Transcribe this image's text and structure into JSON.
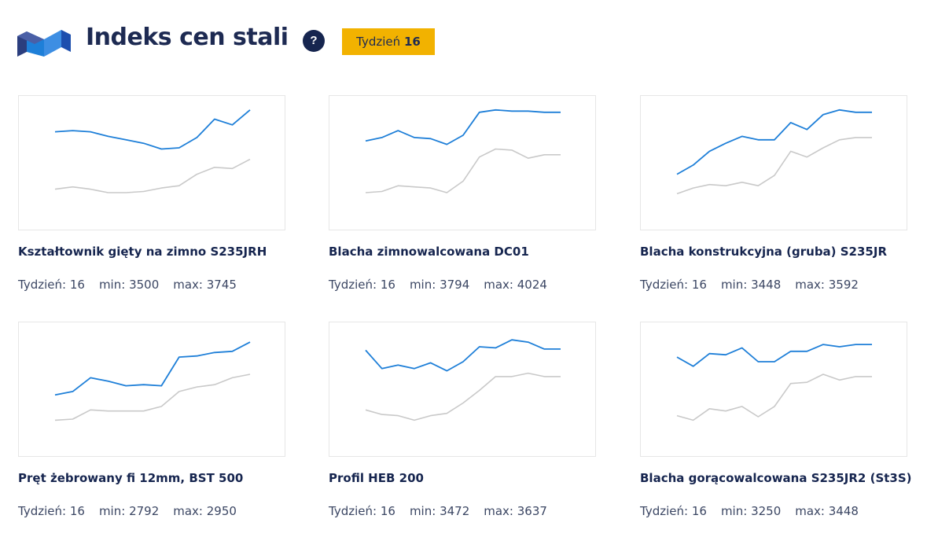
{
  "header": {
    "title": "Indeks cen stali",
    "help_symbol": "?",
    "week_label": "Tydzień",
    "week_number": "16"
  },
  "colors": {
    "primary_line": "#1e7fd8",
    "secondary_line": "#c9c9c9",
    "badge": "#f2b200",
    "navy": "#1d2a52"
  },
  "labels": {
    "week": "Tydzień:",
    "min": "min:",
    "max": "max:"
  },
  "chart_data": [
    {
      "type": "line",
      "title": "Kształtownik gięty na zimno S235JRH",
      "week": "16",
      "min": "3500",
      "max": "3745",
      "ylim": [
        0,
        1
      ],
      "x": [
        1,
        2,
        3,
        4,
        5,
        6,
        7,
        8,
        9,
        10,
        11,
        12
      ],
      "series": [
        {
          "values": [
            0.77,
            0.78,
            0.77,
            0.73,
            0.7,
            0.67,
            0.62,
            0.63,
            0.72,
            0.88,
            0.83,
            0.96
          ]
        },
        {
          "values": [
            0.27,
            0.29,
            0.27,
            0.24,
            0.24,
            0.25,
            0.28,
            0.3,
            0.4,
            0.46,
            0.45,
            0.53
          ]
        }
      ]
    },
    {
      "type": "line",
      "title": "Blacha zimnowalcowana DC01",
      "week": "16",
      "min": "3794",
      "max": "4024",
      "ylim": [
        0,
        1
      ],
      "x": [
        1,
        2,
        3,
        4,
        5,
        6,
        7,
        8,
        9,
        10,
        11,
        12,
        13
      ],
      "series": [
        {
          "values": [
            0.69,
            0.72,
            0.78,
            0.72,
            0.71,
            0.66,
            0.74,
            0.94,
            0.96,
            0.95,
            0.95,
            0.94,
            0.94
          ]
        },
        {
          "values": [
            0.24,
            0.25,
            0.3,
            0.29,
            0.28,
            0.24,
            0.34,
            0.55,
            0.62,
            0.61,
            0.54,
            0.57,
            0.57
          ]
        }
      ]
    },
    {
      "type": "line",
      "title": "Blacha konstrukcyjna (gruba) S235JR",
      "week": "16",
      "min": "3448",
      "max": "3592",
      "ylim": [
        0,
        1
      ],
      "x": [
        1,
        2,
        3,
        4,
        5,
        6,
        7,
        8,
        9,
        10,
        11,
        12,
        13
      ],
      "series": [
        {
          "values": [
            0.4,
            0.48,
            0.6,
            0.67,
            0.73,
            0.7,
            0.7,
            0.85,
            0.79,
            0.92,
            0.96,
            0.94,
            0.94
          ]
        },
        {
          "values": [
            0.23,
            0.28,
            0.31,
            0.3,
            0.33,
            0.3,
            0.39,
            0.6,
            0.55,
            0.63,
            0.7,
            0.72,
            0.72
          ]
        }
      ]
    },
    {
      "type": "line",
      "title": "Pręt żebrowany fi 12mm, BST 500",
      "week": "16",
      "min": "2792",
      "max": "2950",
      "ylim": [
        0,
        1
      ],
      "x": [
        1,
        2,
        3,
        4,
        5,
        6,
        7,
        8,
        9,
        10,
        11,
        12
      ],
      "series": [
        {
          "values": [
            0.45,
            0.48,
            0.6,
            0.57,
            0.53,
            0.54,
            0.53,
            0.78,
            0.79,
            0.82,
            0.83,
            0.91
          ]
        },
        {
          "values": [
            0.23,
            0.24,
            0.32,
            0.31,
            0.31,
            0.31,
            0.35,
            0.48,
            0.52,
            0.54,
            0.6,
            0.63
          ]
        }
      ]
    },
    {
      "type": "line",
      "title": "Profil HEB 200",
      "week": "16",
      "min": "3472",
      "max": "3637",
      "ylim": [
        0,
        1
      ],
      "x": [
        1,
        2,
        3,
        4,
        5,
        6,
        7,
        8,
        9,
        10,
        11,
        12,
        13
      ],
      "series": [
        {
          "values": [
            0.84,
            0.68,
            0.71,
            0.68,
            0.73,
            0.66,
            0.74,
            0.87,
            0.86,
            0.93,
            0.91,
            0.85,
            0.85
          ]
        },
        {
          "values": [
            0.32,
            0.28,
            0.27,
            0.23,
            0.27,
            0.29,
            0.38,
            0.49,
            0.61,
            0.61,
            0.64,
            0.61,
            0.61
          ]
        }
      ]
    },
    {
      "type": "line",
      "title": "Blacha gorącowalcowana S235JR2 (St3S)",
      "week": "16",
      "min": "3250",
      "max": "3448",
      "ylim": [
        0,
        1
      ],
      "x": [
        1,
        2,
        3,
        4,
        5,
        6,
        7,
        8,
        9,
        10,
        11,
        12,
        13
      ],
      "series": [
        {
          "values": [
            0.78,
            0.7,
            0.81,
            0.8,
            0.86,
            0.74,
            0.74,
            0.83,
            0.83,
            0.89,
            0.87,
            0.89,
            0.89
          ]
        },
        {
          "values": [
            0.27,
            0.23,
            0.33,
            0.31,
            0.35,
            0.26,
            0.35,
            0.55,
            0.56,
            0.63,
            0.58,
            0.61,
            0.61
          ]
        }
      ]
    }
  ]
}
